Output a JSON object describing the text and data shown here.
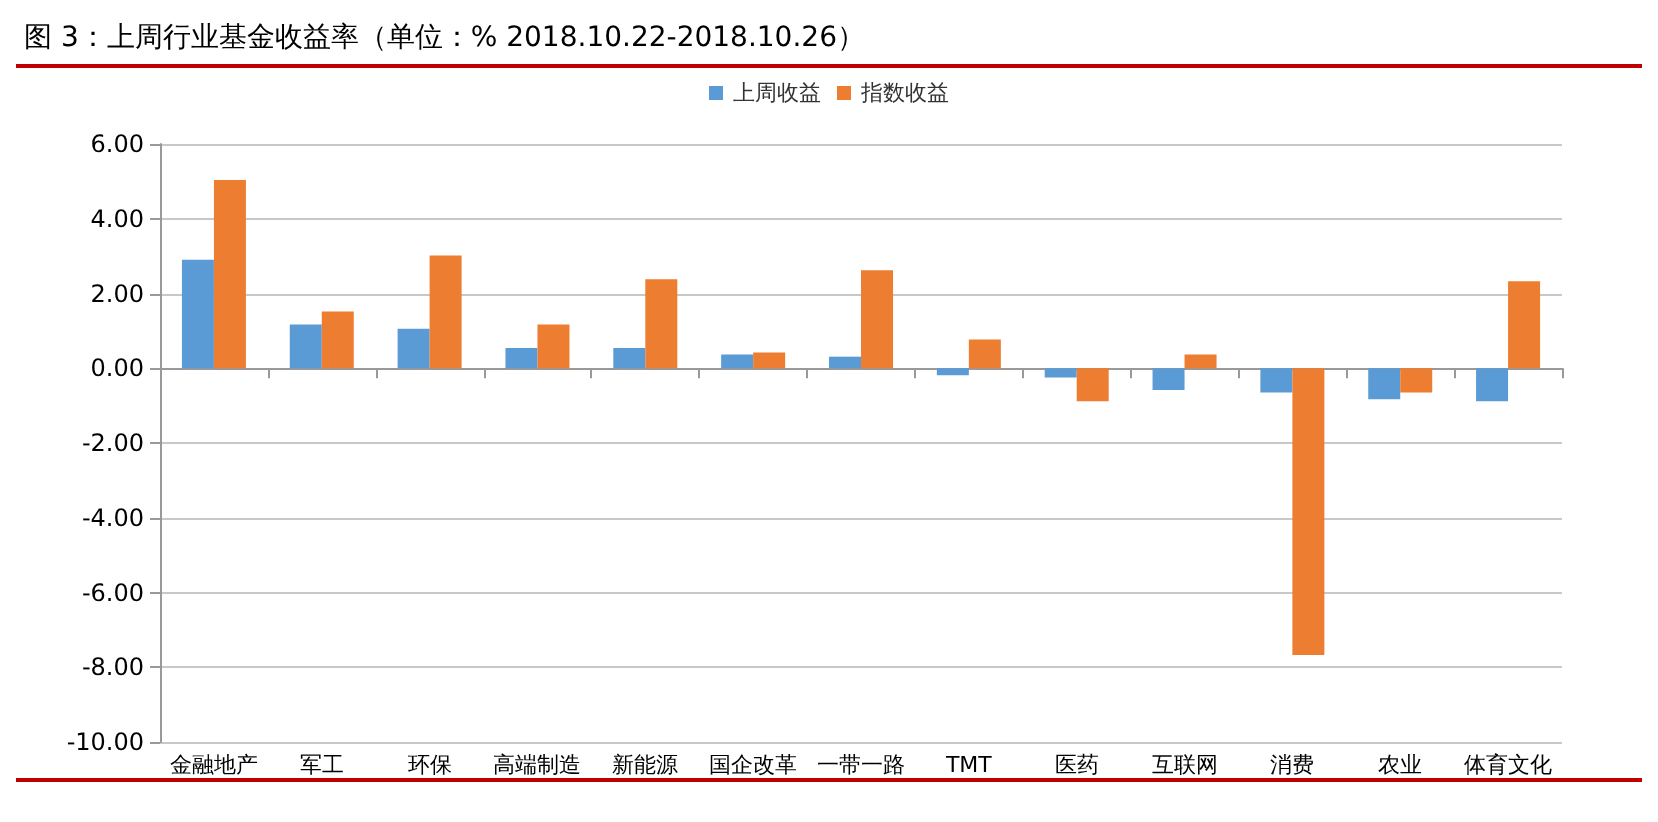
{
  "chart_data": {
    "type": "bar",
    "title": "图 3：上周行业基金收益率（单位：% 2018.10.22-2018.10.26）",
    "categories": [
      "金融地产",
      "军工",
      "环保",
      "高端制造",
      "新能源",
      "国企改革",
      "一带一路",
      "TMT",
      "医药",
      "互联网",
      "消费",
      "农业",
      "体育文化"
    ],
    "series": [
      {
        "name": "上周收益",
        "color": "#5b9bd5",
        "values": [
          2.9,
          1.17,
          1.06,
          0.54,
          0.54,
          0.37,
          0.31,
          -0.19,
          -0.25,
          -0.58,
          -0.65,
          -0.83,
          -0.88
        ]
      },
      {
        "name": "指数收益",
        "color": "#ed7d31",
        "values": [
          5.04,
          1.52,
          3.02,
          1.17,
          2.38,
          0.42,
          2.62,
          0.77,
          -0.88,
          0.37,
          -7.67,
          -0.65,
          2.33
        ]
      }
    ],
    "ylim": [
      -10,
      6
    ],
    "yticks": [
      {
        "value": -10,
        "label": "-10.00"
      },
      {
        "value": -8,
        "label": "-8.00"
      },
      {
        "value": -6,
        "label": "-6.00"
      },
      {
        "value": -4,
        "label": "-4.00"
      },
      {
        "value": -2,
        "label": "-2.00"
      },
      {
        "value": 0,
        "label": "0.00"
      },
      {
        "value": 2,
        "label": "2.00"
      },
      {
        "value": 4,
        "label": "4.00"
      },
      {
        "value": 6,
        "label": "6.00"
      }
    ],
    "grid": "y",
    "legend": "top"
  }
}
